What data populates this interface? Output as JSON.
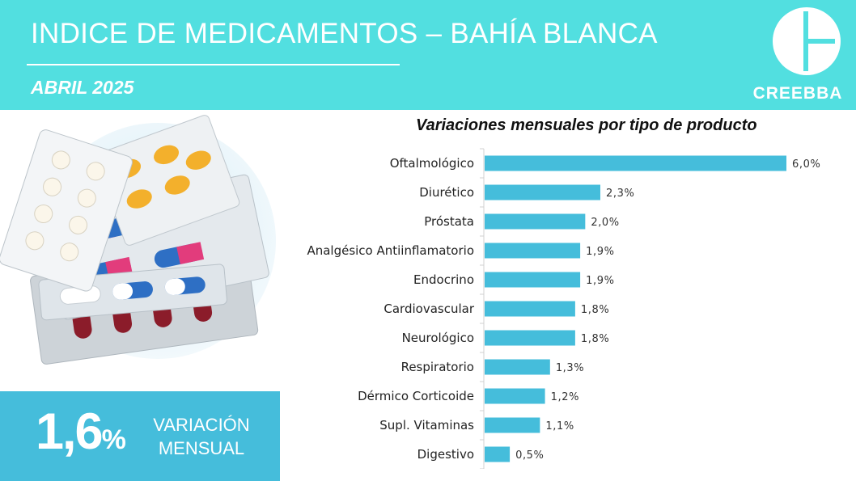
{
  "header": {
    "title": "INDICE DE MEDICAMENTOS – BAHÍA BLANCA",
    "subtitle": "ABRIL 2025",
    "logo_text": "CREEBBA"
  },
  "kpi": {
    "value": "1,6",
    "unit": "%",
    "label_line1": "VARIACIÓN",
    "label_line2": "MENSUAL"
  },
  "colors": {
    "header_bg": "#52dfe0",
    "bar": "#45bddb",
    "kpi_bg": "#45bddb"
  },
  "chart_data": {
    "type": "bar",
    "orientation": "horizontal",
    "title": "Variaciones mensuales por tipo de producto",
    "categories": [
      "Oftalmológico",
      "Diurético",
      "Próstata",
      "Analgésico Antiinflamatorio",
      "Endocrino",
      "Cardiovascular",
      "Neurológico",
      "Respiratorio",
      "Dérmico Corticoide",
      "Supl. Vitaminas",
      "Digestivo"
    ],
    "values": [
      6.0,
      2.3,
      2.0,
      1.9,
      1.9,
      1.8,
      1.8,
      1.3,
      1.2,
      1.1,
      0.5
    ],
    "value_labels": [
      "6,0%",
      "2,3%",
      "2,0%",
      "1,9%",
      "1,9%",
      "1,8%",
      "1,8%",
      "1,3%",
      "1,2%",
      "1,1%",
      "0,5%"
    ],
    "xlim": [
      0,
      6.0
    ],
    "grid": false,
    "legend": "none"
  }
}
